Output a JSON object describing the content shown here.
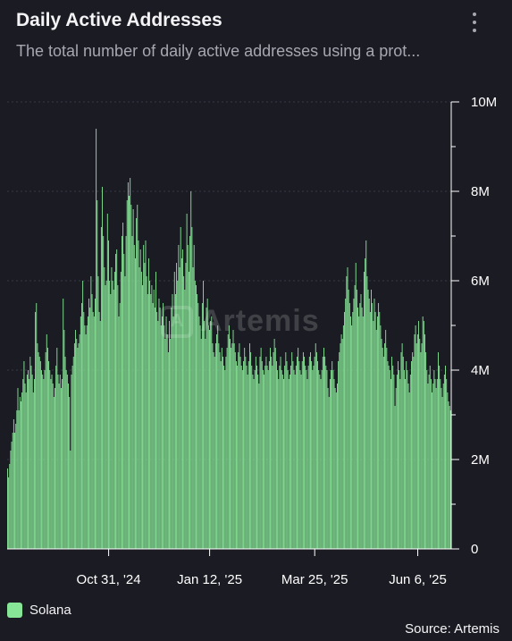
{
  "header": {
    "title": "Daily Active Addresses",
    "subtitle": "The total number of daily active addresses using a prot...",
    "menu_icon": "more-vertical-icon"
  },
  "watermark": {
    "text": "Artemis",
    "logo_letter": "A"
  },
  "source": "Source: Artemis",
  "colors": {
    "background": "#1b1b23",
    "bar": "#86e596",
    "grid": "#3a3a46",
    "axis_text": "#ffffff"
  },
  "chart_data": {
    "type": "bar",
    "grid": true,
    "ylim": [
      0,
      10000000
    ],
    "y_ticks": [
      0,
      2000000,
      4000000,
      6000000,
      8000000,
      10000000
    ],
    "y_tick_labels": [
      "0",
      "2M",
      "4M",
      "6M",
      "8M",
      "10M"
    ],
    "x_tick_labels": [
      "Oct 31, '24",
      "Jan 12, '25",
      "Mar 25, '25",
      "Jun 6, '25"
    ],
    "x_tick_indices": [
      98,
      196,
      298,
      398
    ],
    "legend": {
      "position": "bottom-left",
      "entries": [
        "Solana"
      ]
    },
    "series": [
      {
        "name": "Solana",
        "color": "#86e596",
        "values": [
          1.8,
          1.6,
          1.9,
          2.2,
          2.4,
          2.6,
          2.9,
          2.6,
          2.8,
          3.1,
          3.6,
          3.1,
          3.4,
          3.3,
          3.5,
          3.8,
          4.2,
          3.7,
          3.5,
          3.9,
          4.0,
          3.8,
          4.3,
          4.1,
          3.9,
          3.5,
          3.8,
          5.3,
          5.5,
          4.6,
          4.4,
          4.3,
          4.2,
          4.0,
          3.9,
          3.8,
          4.0,
          4.4,
          4.8,
          4.5,
          4.2,
          4.0,
          3.8,
          3.9,
          3.7,
          3.4,
          3.6,
          4.1,
          4.5,
          3.9,
          3.7,
          3.9,
          3.6,
          3.8,
          5.6,
          4.9,
          4.3,
          4.0,
          3.9,
          3.7,
          3.4,
          2.2,
          3.9,
          4.1,
          4.3,
          4.6,
          4.9,
          4.7,
          4.5,
          4.6,
          4.8,
          5.2,
          5.5,
          6.0,
          5.3,
          5.0,
          4.8,
          5.0,
          5.2,
          5.6,
          5.4,
          6.1,
          5.7,
          5.3,
          5.2,
          5.6,
          9.4,
          7.8,
          6.1,
          5.3,
          5.1,
          7.2,
          8.1,
          7.0,
          6.3,
          5.9,
          6.0,
          7.5,
          6.9,
          6.0,
          5.7,
          6.3,
          6.0,
          5.8,
          6.2,
          6.6,
          6.7,
          5.9,
          5.2,
          5.5,
          6.2,
          7.0,
          7.3,
          6.6,
          6.1,
          7.0,
          7.8,
          8.2,
          7.9,
          8.3,
          7.7,
          7.0,
          7.6,
          6.8,
          6.5,
          7.4,
          7.7,
          6.9,
          6.3,
          6.7,
          6.2,
          5.9,
          6.8,
          6.4,
          6.9,
          6.1,
          5.7,
          6.5,
          6.0,
          5.7,
          5.9,
          5.5,
          5.8,
          5.4,
          6.2,
          5.3,
          5.1,
          5.6,
          5.4,
          5.0,
          5.2,
          5.5,
          5.0,
          4.7,
          5.2,
          4.8,
          4.4,
          5.1,
          4.7,
          5.4,
          5.7,
          5.2,
          6.2,
          5.7,
          6.4,
          6.0,
          6.8,
          6.3,
          7.2,
          6.5,
          6.7,
          6.1,
          5.8,
          6.4,
          7.5,
          6.8,
          6.2,
          7.0,
          8.0,
          7.2,
          6.3,
          6.8,
          6.0,
          5.9,
          5.7,
          5.5,
          5.2,
          5.0,
          4.7,
          5.5,
          6.0,
          5.1,
          4.7,
          5.4,
          5.6,
          5.0,
          4.9,
          5.1,
          5.2,
          4.6,
          4.4,
          4.3,
          4.6,
          4.8,
          5.0,
          4.6,
          4.4,
          4.2,
          4.5,
          4.3,
          4.1,
          4.0,
          4.3,
          4.5,
          4.8,
          5.0,
          4.7,
          4.5,
          4.6,
          4.9,
          4.6,
          4.4,
          4.2,
          4.1,
          4.4,
          4.6,
          4.3,
          4.1,
          4.0,
          4.2,
          4.5,
          4.3,
          4.1,
          3.9,
          4.2,
          4.6,
          4.4,
          4.1,
          3.9,
          3.8,
          4.0,
          4.3,
          4.1,
          3.9,
          3.7,
          4.3,
          4.5,
          4.2,
          4.0,
          3.9,
          4.1,
          4.3,
          4.1,
          4.0,
          4.2,
          4.5,
          4.3,
          4.1,
          4.4,
          4.7,
          4.5,
          4.2,
          4.0,
          3.8,
          4.1,
          4.3,
          4.0,
          3.9,
          3.8,
          4.1,
          4.4,
          4.2,
          4.0,
          3.8,
          3.9,
          4.1,
          4.4,
          4.2,
          4.0,
          3.9,
          4.1,
          4.3,
          4.5,
          4.2,
          4.0,
          3.9,
          4.2,
          4.4,
          4.3,
          4.1,
          4.0,
          3.8,
          4.1,
          4.3,
          4.4,
          4.2,
          4.0,
          4.1,
          4.3,
          4.6,
          4.4,
          4.2,
          4.0,
          3.9,
          3.8,
          4.0,
          4.3,
          4.5,
          4.3,
          4.1,
          4.0,
          3.6,
          3.4,
          3.8,
          4.0,
          4.2,
          4.0,
          3.8,
          3.6,
          3.5,
          3.7,
          4.2,
          4.4,
          4.6,
          4.8,
          4.7,
          5.0,
          5.3,
          5.6,
          6.1,
          6.3,
          5.8,
          5.5,
          5.2,
          5.0,
          5.3,
          5.6,
          5.9,
          6.4,
          5.8,
          5.4,
          5.2,
          5.5,
          5.7,
          5.4,
          5.2,
          6.2,
          6.5,
          6.9,
          6.1,
          5.8,
          5.6,
          5.3,
          5.8,
          5.5,
          5.1,
          5.6,
          5.3,
          4.9,
          5.2,
          5.5,
          5.3,
          5.0,
          4.7,
          4.5,
          4.3,
          4.6,
          4.9,
          4.5,
          4.2,
          4.1,
          4.0,
          3.8,
          4.3,
          4.1,
          3.9,
          3.2,
          3.6,
          3.9,
          4.2,
          4.0,
          3.8,
          4.4,
          4.6,
          4.3,
          4.0,
          3.8,
          4.2,
          4.0,
          3.7,
          3.5,
          3.9,
          4.2,
          4.4,
          4.3,
          4.8,
          5.0,
          4.6,
          4.8,
          5.1,
          4.7,
          4.4,
          4.6,
          5.2,
          5.1,
          4.8,
          4.4,
          4.0,
          3.7,
          3.9,
          4.1,
          3.8,
          3.5,
          3.7,
          4.0,
          3.8,
          3.6,
          3.8,
          4.4,
          4.1,
          3.8,
          3.6,
          3.4,
          3.7,
          3.9,
          4.1,
          3.8,
          3.5,
          3.3,
          3.2,
          3.1
        ]
      }
    ]
  }
}
